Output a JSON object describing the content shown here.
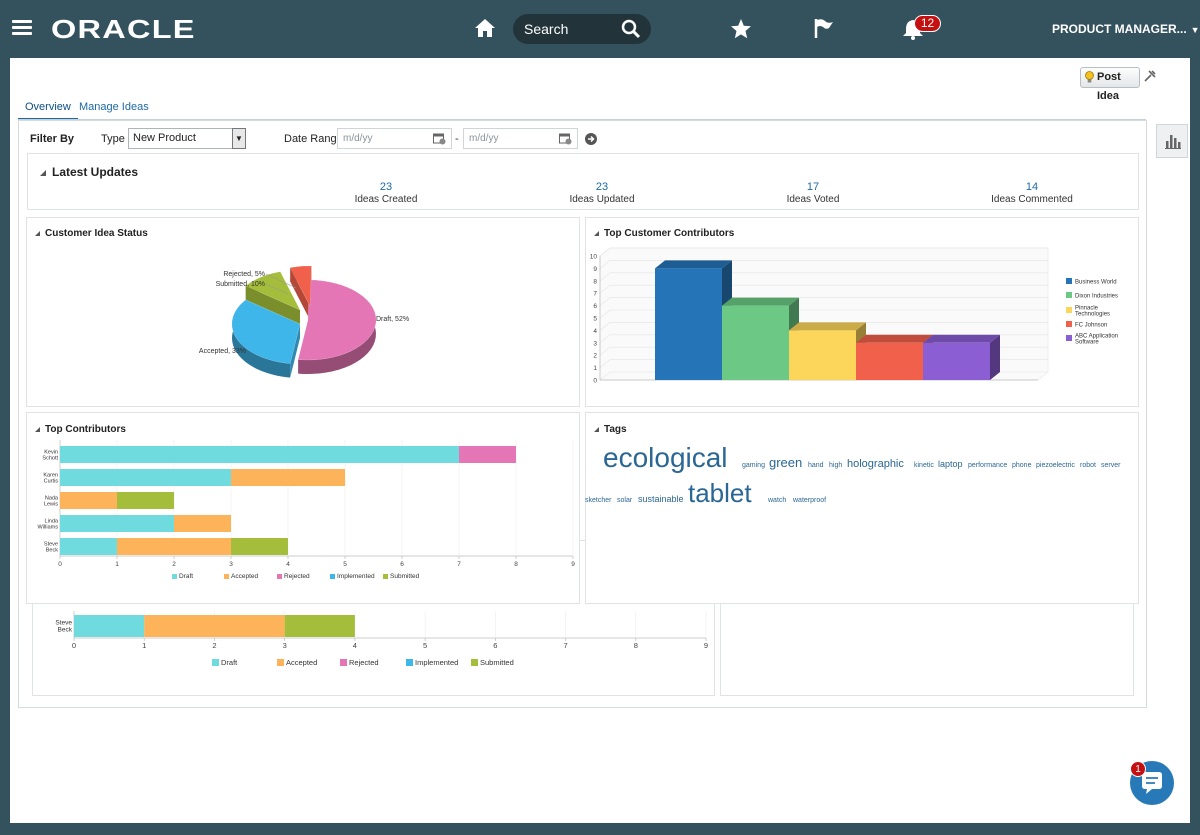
{
  "header": {
    "logo_text": "ORACLE",
    "search_placeholder": "Search",
    "notification_count": "12",
    "user_menu_label": "PRODUCT MANAGER..."
  },
  "toolbar": {
    "post_idea_label": "Post Idea"
  },
  "tabs": [
    {
      "label": "Overview",
      "active": true
    },
    {
      "label": "Manage Ideas",
      "active": false
    }
  ],
  "filter": {
    "filter_by_label": "Filter By",
    "type_label": "Type",
    "type_value": "New Product",
    "date_range_label": "Date Range",
    "date_from_placeholder": "m/d/yy",
    "date_to_placeholder": "m/d/yy",
    "separator": "-"
  },
  "latest_updates": {
    "title": "Latest Updates",
    "stats": [
      {
        "value": "23",
        "label": "Ideas Created"
      },
      {
        "value": "23",
        "label": "Ideas Updated"
      },
      {
        "value": "17",
        "label": "Ideas Voted"
      },
      {
        "value": "14",
        "label": "Ideas Commented"
      }
    ]
  },
  "panels": {
    "customer_idea_status_title": "Customer Idea Status",
    "top_customer_contributors_title": "Top Customer Contributors",
    "top_contributors_title": "Top Contributors",
    "tags_title": "Tags"
  },
  "tags": [
    {
      "text": "ecological",
      "size": 28
    },
    {
      "text": "gaming",
      "size": 7
    },
    {
      "text": "green",
      "size": 13
    },
    {
      "text": "hand",
      "size": 7
    },
    {
      "text": "high",
      "size": 7
    },
    {
      "text": "holographic",
      "size": 11
    },
    {
      "text": "kinetic",
      "size": 7
    },
    {
      "text": "laptop",
      "size": 9
    },
    {
      "text": "performance",
      "size": 7
    },
    {
      "text": "phone",
      "size": 7
    },
    {
      "text": "piezoelectric",
      "size": 7
    },
    {
      "text": "robot",
      "size": 7
    },
    {
      "text": "server",
      "size": 7
    },
    {
      "text": "sketcher",
      "size": 7
    },
    {
      "text": "solar",
      "size": 7
    },
    {
      "text": "sustainable",
      "size": 9
    },
    {
      "text": "tablet",
      "size": 26
    },
    {
      "text": "watch",
      "size": 7
    },
    {
      "text": "waterproof",
      "size": 7
    }
  ],
  "chat": {
    "badge_count": "1"
  },
  "colors": {
    "header_bg": "#34525d",
    "link_blue": "#1c6aa6",
    "draft": "#6fdbdf",
    "accepted": "#fdb35a",
    "rejected": "#e576b6",
    "implemented": "#3fb6ea",
    "submitted": "#a4bd3a"
  },
  "chart_data": [
    {
      "id": "customer-idea-status",
      "type": "pie",
      "title": "Customer Idea Status",
      "slices": [
        {
          "label": "Draft",
          "value": 52,
          "text": "Draft, 52%",
          "color": "#e576b6"
        },
        {
          "label": "Accepted",
          "value": 33,
          "text": "Accepted, 33%",
          "color": "#3fb6ea"
        },
        {
          "label": "Submitted",
          "value": 10,
          "text": "Submitted, 10%",
          "color": "#a4bd3a"
        },
        {
          "label": "Rejected",
          "value": 5,
          "text": "Rejected, 5%",
          "color": "#f0604a"
        }
      ]
    },
    {
      "id": "top-customer-contributors",
      "type": "bar",
      "title": "Top Customer Contributors",
      "categories": [
        "Business World",
        "Dixon Industries",
        "Pinnacle Technologies",
        "FC Johnson",
        "ABC Application Software"
      ],
      "values": [
        9,
        6,
        4,
        3,
        3
      ],
      "colors": [
        "#2674b8",
        "#6cc985",
        "#fcd65a",
        "#f0604a",
        "#8b5ed3"
      ],
      "ylim": [
        0,
        10
      ],
      "yticks": [
        "0",
        "1",
        "2",
        "3",
        "4",
        "5",
        "6",
        "7",
        "8",
        "9",
        "10"
      ],
      "legend": [
        "Business World",
        "Dixon Industries",
        "Pinnacle Technologies",
        "FC Johnson",
        "ABC Application Software"
      ],
      "legend_position": "right"
    },
    {
      "id": "top-contributors",
      "type": "bar",
      "orientation": "horizontal",
      "stacked": true,
      "title": "Top Contributors",
      "categories": [
        "Kevin Schott",
        "Karen Curtis",
        "Nada Lewis",
        "Linda Williams",
        "Steve Beck"
      ],
      "series": [
        {
          "name": "Draft",
          "color": "#6fdbdf",
          "values": [
            7,
            3,
            0,
            2,
            1
          ]
        },
        {
          "name": "Accepted",
          "color": "#fdb35a",
          "values": [
            0,
            2,
            1,
            1,
            2
          ]
        },
        {
          "name": "Rejected",
          "color": "#e576b6",
          "values": [
            1,
            0,
            0,
            0,
            0
          ]
        },
        {
          "name": "Implemented",
          "color": "#3fb6ea",
          "values": [
            0,
            0,
            0,
            0,
            0
          ]
        },
        {
          "name": "Submitted",
          "color": "#a4bd3a",
          "values": [
            0,
            0,
            1,
            0,
            1
          ]
        }
      ],
      "xlim": [
        0,
        9
      ],
      "xticks": [
        "0",
        "1",
        "2",
        "3",
        "4",
        "5",
        "6",
        "7",
        "8",
        "9"
      ],
      "legend_position": "bottom"
    },
    {
      "id": "top-contributors-background",
      "type": "bar",
      "orientation": "horizontal",
      "stacked": true,
      "categories": [
        "Steve Beck"
      ],
      "series": [
        {
          "name": "Draft",
          "color": "#6fdbdf",
          "values": [
            1
          ]
        },
        {
          "name": "Accepted",
          "color": "#fdb35a",
          "values": [
            2
          ]
        },
        {
          "name": "Rejected",
          "color": "#e576b6",
          "values": [
            0
          ]
        },
        {
          "name": "Implemented",
          "color": "#3fb6ea",
          "values": [
            0
          ]
        },
        {
          "name": "Submitted",
          "color": "#a4bd3a",
          "values": [
            1
          ]
        }
      ],
      "xlim": [
        0,
        9
      ],
      "xticks": [
        "0",
        "1",
        "2",
        "3",
        "4",
        "5",
        "6",
        "7",
        "8",
        "9"
      ],
      "legend_position": "bottom"
    }
  ]
}
